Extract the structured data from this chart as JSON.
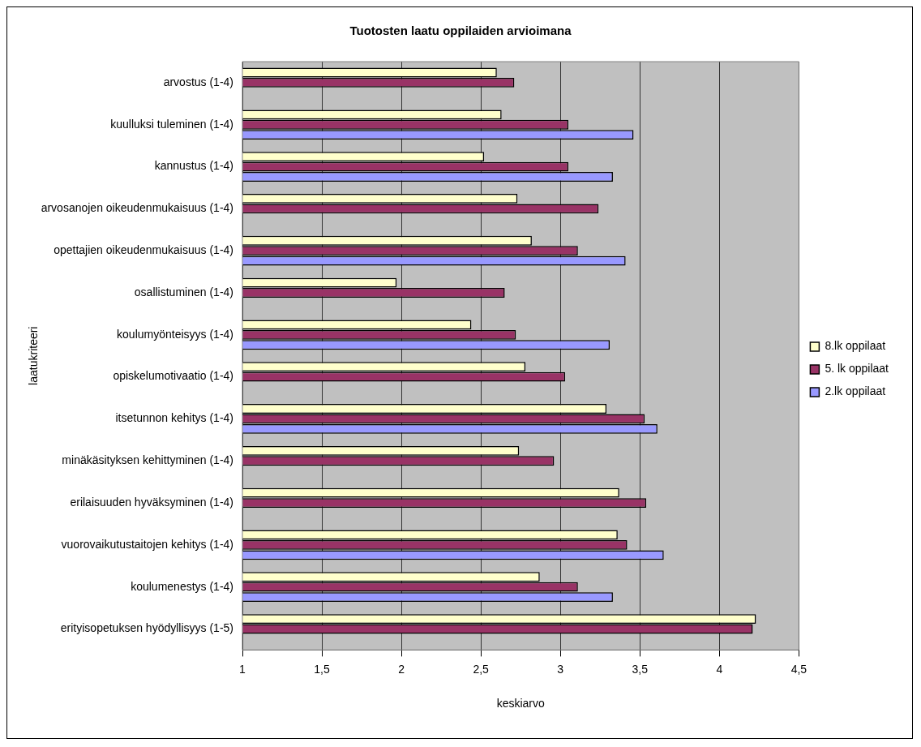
{
  "chart_data": {
    "type": "bar",
    "orientation": "horizontal",
    "title": "Tuotosten laatu oppilaiden arvioimana",
    "xlabel": "keskiarvo",
    "ylabel": "laatukriteeri",
    "categories": [
      "arvostus (1-4)",
      "kuulluksi tuleminen (1-4)",
      "kannustus (1-4)",
      "arvosanojen oikeudenmukaisuus (1-4)",
      "opettajien oikeudenmukaisuus (1-4)",
      "osallistuminen (1-4)",
      "koulumyönteisyys (1-4)",
      "opiskelumotivaatio (1-4)",
      "itsetunnon kehitys (1-4)",
      "minäkäsityksen kehittyminen (1-4)",
      "erilaisuuden hyväksyminen (1-4)",
      "vuorovaikutustaitojen kehitys (1-4)",
      "koulumenestys (1-4)",
      "erityisopetuksen hyödyllisyys (1-5)"
    ],
    "series": [
      {
        "name": "8.lk oppilaat",
        "color": "#ffffcc",
        "values": [
          2.6,
          2.63,
          2.52,
          2.73,
          2.82,
          1.97,
          2.44,
          2.78,
          3.29,
          2.74,
          3.37,
          3.36,
          2.87,
          4.23
        ]
      },
      {
        "name": "5. lk oppilaat",
        "color": "#993366",
        "values": [
          2.71,
          3.05,
          3.05,
          3.24,
          3.11,
          2.65,
          2.72,
          3.03,
          3.53,
          2.96,
          3.54,
          3.42,
          3.11,
          4.21
        ]
      },
      {
        "name": "2.lk oppilaat",
        "color": "#9999ff",
        "values": [
          null,
          3.46,
          3.33,
          null,
          3.41,
          null,
          3.31,
          null,
          3.61,
          null,
          null,
          3.65,
          3.33,
          null
        ]
      }
    ],
    "xlim": [
      1,
      4.5
    ],
    "xticks": [
      1,
      {
        "value": 1.5,
        "label": "1,5"
      },
      2,
      {
        "value": 2.5,
        "label": "2,5"
      },
      3,
      {
        "value": 3.5,
        "label": "3,5"
      },
      4,
      {
        "value": 4.5,
        "label": "4,5"
      }
    ],
    "grid": "x",
    "legend": "right"
  }
}
